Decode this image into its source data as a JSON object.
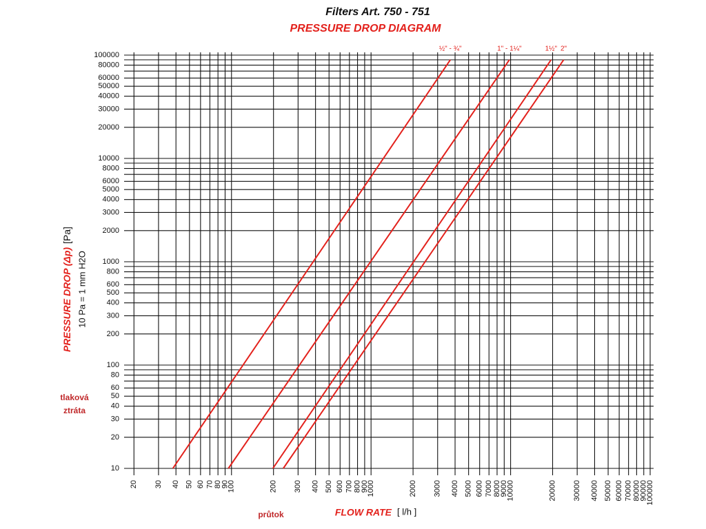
{
  "chart_data": {
    "type": "line",
    "title": "Filters Art. 750 - 751",
    "subtitle": "PRESSURE DROP DIAGRAM",
    "y_label": "PRESSURE DROP (Δp)",
    "y_unit": "[Pa]",
    "y_note": "10 Pa = 1 mm H2O",
    "y_annotation": [
      "tlaková",
      "ztráta"
    ],
    "x_label": "FLOW RATE",
    "x_unit": "[ l/h ]",
    "x_annotation": "průtok",
    "x_log": true,
    "y_log": true,
    "grid": true,
    "xlim": [
      17,
      100000
    ],
    "ylim": [
      10,
      100000
    ],
    "xticks": [
      20,
      30,
      40,
      50,
      60,
      70,
      80,
      90,
      100,
      200,
      300,
      400,
      500,
      600,
      700,
      800,
      900,
      1000,
      2000,
      3000,
      4000,
      5000,
      6000,
      7000,
      8000,
      9000,
      10000,
      20000,
      30000,
      40000,
      50000,
      60000,
      70000,
      80000,
      90000,
      100000
    ],
    "yticks": [
      10,
      20,
      30,
      40,
      50,
      60,
      80,
      100,
      200,
      300,
      400,
      500,
      600,
      800,
      1000,
      2000,
      3000,
      4000,
      5000,
      6000,
      8000,
      10000,
      20000,
      30000,
      40000,
      50000,
      60000,
      80000,
      100000
    ],
    "y_minor_grid": [
      70,
      90,
      700,
      900,
      7000,
      9000,
      70000,
      90000
    ],
    "series": [
      {
        "name": "½\" - ¾\"",
        "color": "#e3211c",
        "x": [
          38,
          3700
        ],
        "values": [
          10,
          90000
        ]
      },
      {
        "name": "1\" - 1¼\"",
        "color": "#e3211c",
        "x": [
          95,
          9800
        ],
        "values": [
          10,
          90000
        ]
      },
      {
        "name": "1½\"",
        "color": "#e3211c",
        "x": [
          198,
          19500
        ],
        "values": [
          10,
          90000
        ]
      },
      {
        "name": "2\"",
        "color": "#e3211c",
        "x": [
          235,
          24000
        ],
        "values": [
          10,
          90000
        ]
      }
    ]
  }
}
